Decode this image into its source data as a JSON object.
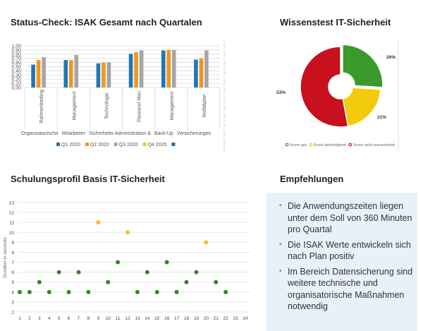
{
  "titles": {
    "status": "Status-Check: ISAK Gesamt nach Quartalen",
    "wissen": "Wissenstest IT-Sicherheit",
    "schulung": "Schulungsprofil Basis IT-Sicherheit",
    "empf": "Empfehlungen"
  },
  "recommendations": [
    "Die Anwendungszeiten liegen unter dem Soll von 360 Minuten pro Quartal",
    "Die ISAK Werte entwickeln sich nach Plan positiv",
    "Im Bereich Datensicherung sind weitere technische und organisatorische Maßnahmen notwendig"
  ],
  "chart_data": [
    {
      "type": "bar",
      "title": "Status-Check: ISAK Gesamt nach Quartalen",
      "ylim": [
        0,
        1
      ],
      "yticks": [
        "0,00",
        "0,10",
        "0,20",
        "0,30",
        "0,40",
        "0,50",
        "0,60",
        "0,70",
        "0,80",
        "0,90",
        "1,00"
      ],
      "groups": [
        "Organisatorische",
        "Mitarbeiter",
        "Sicherheits-Administration &",
        "Back-Up",
        "Versicherungen"
      ],
      "categories": [
        "Rahmenbeding.",
        "Management",
        "Technologie",
        "Passwort Man.",
        "Management",
        "Notfallplan"
      ],
      "series": [
        {
          "name": "Q1 2020",
          "color": "#1f77b4",
          "values": [
            0.55,
            0.66,
            0.58,
            0.81,
            0.89,
            0.67
          ]
        },
        {
          "name": "Q2 2020",
          "color": "#f0961e",
          "values": [
            0.66,
            0.66,
            0.6,
            0.85,
            0.9,
            0.7
          ]
        },
        {
          "name": "Q3 2020",
          "color": "#a5a5a5",
          "values": [
            0.73,
            0.78,
            0.61,
            0.89,
            0.9,
            0.89
          ]
        },
        {
          "name": "Q4 2020",
          "color": "#f5c518",
          "values": [
            null,
            null,
            null,
            null,
            null,
            null
          ]
        },
        {
          "name": "",
          "color": "#1f6fa8",
          "values": [
            null,
            null,
            null,
            null,
            null,
            null
          ]
        }
      ],
      "legend": "bottom",
      "grid": true
    },
    {
      "type": "pie",
      "title": "Wissenstest IT-Sicherheit",
      "donut": true,
      "slices": [
        {
          "name": "Score gut",
          "value": 26,
          "label": "26%",
          "color": "#3a9a2a"
        },
        {
          "name": "Score befriedigend",
          "value": 21,
          "label": "21%",
          "color": "#f2cc0c"
        },
        {
          "name": "Score nicht ausreichend",
          "value": 53,
          "label": "53%",
          "color": "#c8101e"
        }
      ],
      "legend": "bottom"
    },
    {
      "type": "scatter",
      "title": "Schulungsprofil Basis IT-Sicherheit",
      "ylabel": "Duration in seconds",
      "xlim": [
        1,
        24
      ],
      "ylim": [
        2,
        13
      ],
      "grid": true,
      "points": [
        [
          1,
          4,
          "g"
        ],
        [
          2,
          4,
          "g"
        ],
        [
          3,
          5,
          "g"
        ],
        [
          4,
          4,
          "g"
        ],
        [
          5,
          6,
          "g"
        ],
        [
          6,
          4,
          "g"
        ],
        [
          7,
          6,
          "g"
        ],
        [
          8,
          4,
          "g"
        ],
        [
          9,
          11,
          "y"
        ],
        [
          10,
          5,
          "g"
        ],
        [
          11,
          7,
          "g"
        ],
        [
          12,
          10,
          "y"
        ],
        [
          13,
          4,
          "g"
        ],
        [
          14,
          6,
          "g"
        ],
        [
          15,
          4,
          "g"
        ],
        [
          16,
          7,
          "g"
        ],
        [
          17,
          4,
          "g"
        ],
        [
          18,
          5,
          "g"
        ],
        [
          19,
          6,
          "g"
        ],
        [
          20,
          9,
          "y"
        ],
        [
          21,
          5,
          "g"
        ],
        [
          22,
          4,
          "g"
        ]
      ],
      "colors": {
        "g": "#2e8b1e",
        "y": "#f2c318"
      }
    }
  ]
}
